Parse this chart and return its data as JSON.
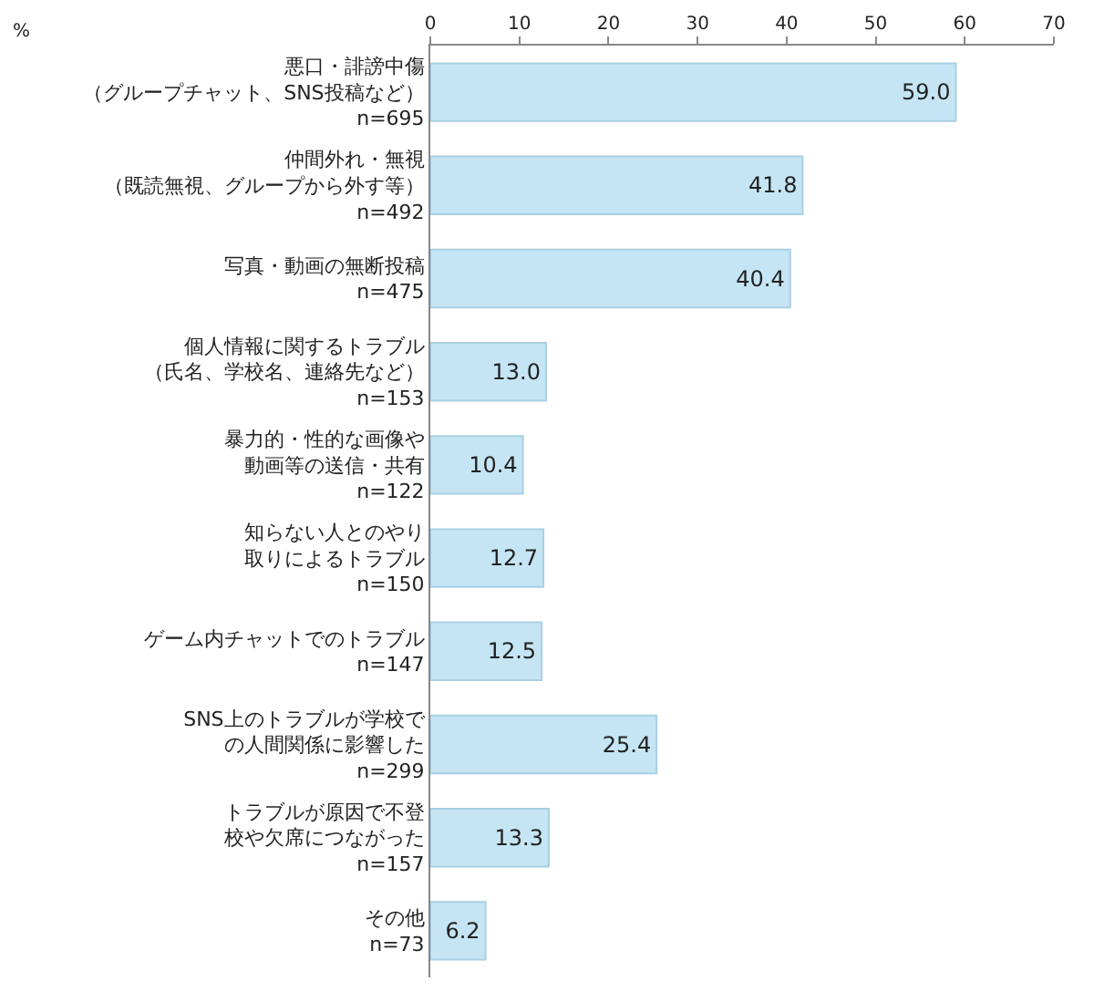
{
  "chart_data": {
    "type": "bar",
    "orientation": "horizontal",
    "annotations": [
      "%"
    ],
    "categories": [
      "悪口・誹謗中傷（グループチャット、SNS投稿など）\nn=695",
      "仲間外れ・無視（既読無視、グループから外す等）\nn=492",
      "写真・動画の無断投稿\nn=475",
      "個人情報に関するトラブル（氏名、学校名、連絡先など）\nn=153",
      "暴力的・性的な画像や動画等の送信・共有\nn=122",
      "知らない人とのやり取りによるトラブル\nn=150",
      "ゲーム内チャットでのトラブル\nn=147",
      "SNS上のトラブルが学校での人間関係に影響した\nn=299",
      "トラブルが原因で不登校や欠席につながった\nn=157",
      "その他\nn=73"
    ],
    "values": [
      59.0,
      41.8,
      40.4,
      13.0,
      10.4,
      12.7,
      12.5,
      25.4,
      13.3,
      6.2
    ],
    "value_labels": [
      "59.0",
      "41.8",
      "40.4",
      "13.0",
      "10.4",
      "12.7",
      "12.5",
      "25.4",
      "13.3",
      "6.2"
    ],
    "color": "#c5e5f4",
    "xlim": [
      0,
      70
    ],
    "xticks": [
      0,
      10,
      20,
      30,
      40,
      50,
      60,
      70
    ],
    "legend": false
  }
}
